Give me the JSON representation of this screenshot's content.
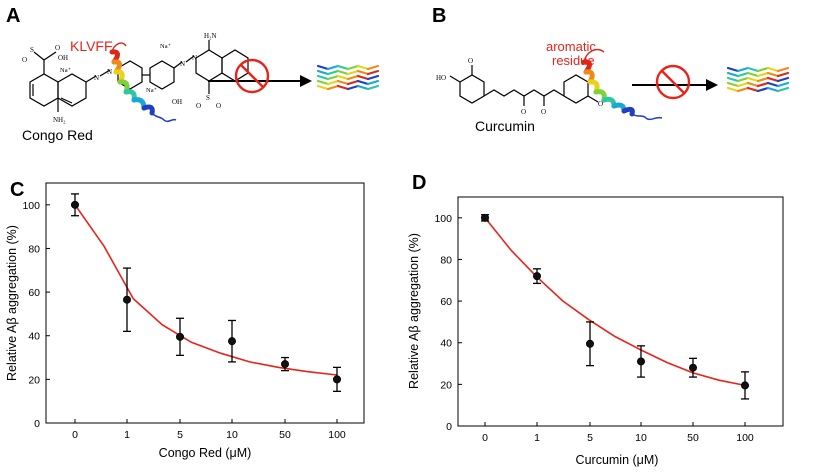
{
  "panels": {
    "a": "A",
    "b": "B",
    "c": "C",
    "d": "D"
  },
  "panel_a": {
    "motif": "KLVFF",
    "compound": "Congo Red",
    "atoms": {
      "oh1": "OH",
      "oh2": "OH",
      "na1": "Na⁺",
      "na2": "Na⁺",
      "na3": "Na⁺",
      "nh2a": "NH₂",
      "nh2b": "H₂N",
      "n1": "N",
      "n2": "N",
      "n3": "N",
      "n4": "N",
      "s1": "S",
      "s2": "S",
      "o1": "O",
      "o2": "O",
      "o3": "O",
      "o4": "O"
    }
  },
  "panel_b": {
    "motif_line1": "aromatic",
    "motif_line2": "residue",
    "compound": "Curcumin",
    "atoms": {
      "ho1": "HO",
      "o1": "O",
      "o2": "O",
      "o3": "O",
      "o4": "O",
      "ome": "O"
    }
  },
  "colors": {
    "fit_line": "#e8231a",
    "motif_text": "#e8231a",
    "inhibit": "#e8231a",
    "helix": [
      "#1f3fbf",
      "#1ba6d8",
      "#2ec7a0",
      "#7fd13c",
      "#e8d21a",
      "#ee8a1a",
      "#d9281c"
    ]
  },
  "chart_data": [
    {
      "type": "scatter",
      "xlabel": "Congo Red (μM)",
      "ylabel": "Relative Aβ aggregation (%)",
      "categories": [
        "0",
        "1",
        "5",
        "10",
        "50",
        "100"
      ],
      "values": [
        100,
        56.5,
        39.5,
        37.5,
        27,
        20
      ],
      "error": [
        5,
        14.5,
        8.5,
        9.5,
        3,
        5.5
      ],
      "fit": [
        100,
        81,
        57,
        45,
        37,
        32,
        28,
        25.5,
        23.5,
        22
      ],
      "ylim": [
        0,
        110
      ],
      "yticks": [
        0,
        20,
        40,
        60,
        80,
        100
      ],
      "grid": false
    },
    {
      "type": "scatter",
      "xlabel": "Curcumin (μM)",
      "ylabel": "Relative Aβ aggregation (%)",
      "categories": [
        "0",
        "1",
        "5",
        "10",
        "50",
        "100"
      ],
      "values": [
        100,
        72,
        39.5,
        31,
        28,
        19.5
      ],
      "error": [
        1.5,
        3.5,
        10.5,
        7.5,
        4.5,
        6.5
      ],
      "fit": [
        100,
        84.5,
        71.5,
        60,
        51,
        43,
        36.5,
        30.5,
        25.5,
        22,
        19.5
      ],
      "ylim": [
        0,
        110
      ],
      "yticks": [
        0,
        20,
        40,
        60,
        80,
        100
      ],
      "grid": false
    }
  ]
}
